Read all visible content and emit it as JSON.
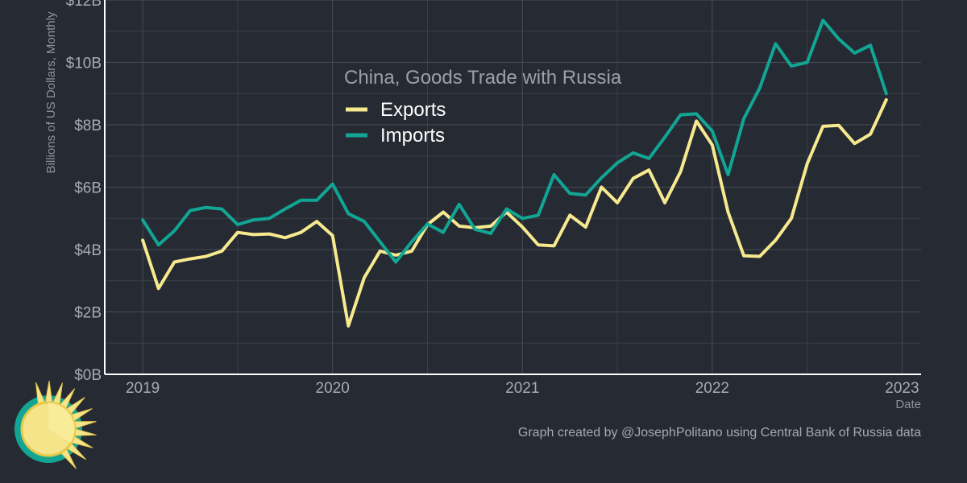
{
  "chart_data": {
    "type": "line",
    "legend_title": "China, Goods Trade with Russia",
    "xlabel": "Date",
    "ylabel": "Billions of US Dollars, Monthly",
    "xlim": [
      2018.8,
      2023.1
    ],
    "ylim": [
      0,
      12
    ],
    "x_ticks": [
      2019,
      2020,
      2021,
      2022,
      2023
    ],
    "x_tick_labels": [
      "2019",
      "2020",
      "2021",
      "2022",
      "2023"
    ],
    "y_ticks": [
      0,
      2,
      4,
      6,
      8,
      10,
      12
    ],
    "y_tick_labels": [
      "$0B",
      "$2B",
      "$4B",
      "$6B",
      "$8B",
      "$10B",
      "$12B"
    ],
    "grid": true,
    "legend_position": "top-center",
    "series": [
      {
        "name": "Exports",
        "color": "#f7e98e",
        "start": "2019-01",
        "values": [
          4.3,
          2.75,
          3.6,
          3.7,
          3.78,
          3.95,
          4.55,
          4.48,
          4.5,
          4.38,
          4.55,
          4.9,
          4.45,
          1.55,
          3.1,
          3.95,
          3.82,
          3.95,
          4.8,
          5.2,
          4.75,
          4.7,
          4.75,
          5.2,
          4.72,
          4.15,
          4.12,
          5.1,
          4.72,
          6.0,
          5.5,
          6.28,
          6.55,
          5.5,
          6.5,
          8.12,
          7.35,
          5.2,
          3.8,
          3.78,
          4.3,
          5.0,
          6.75,
          7.95,
          7.98,
          7.4,
          7.7,
          8.8
        ]
      },
      {
        "name": "Imports",
        "color": "#12a594",
        "start": "2019-01",
        "values": [
          4.95,
          4.15,
          4.6,
          5.25,
          5.35,
          5.3,
          4.8,
          4.95,
          5.0,
          5.3,
          5.58,
          5.58,
          6.1,
          5.15,
          4.9,
          4.25,
          3.6,
          4.25,
          4.82,
          4.55,
          5.45,
          4.65,
          4.52,
          5.3,
          5.0,
          5.1,
          6.4,
          5.8,
          5.75,
          6.3,
          6.78,
          7.1,
          6.92,
          7.6,
          8.32,
          8.35,
          7.8,
          6.4,
          8.2,
          9.18,
          10.6,
          9.88,
          10.0,
          11.35,
          10.75,
          10.3,
          10.55,
          9.0
        ]
      }
    ]
  },
  "caption": "Graph created by @JosephPolitano using Central Bank of Russia data",
  "logo": {
    "name": "sun-logo"
  }
}
